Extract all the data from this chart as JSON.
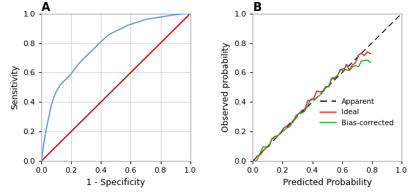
{
  "roc": {
    "title": "A",
    "xlabel": "1 - Specificity",
    "ylabel": "Sensitivity",
    "xlim": [
      0.0,
      1.0
    ],
    "ylim": [
      0.0,
      1.0
    ],
    "xticks": [
      0.0,
      0.2,
      0.4,
      0.6,
      0.8,
      1.0
    ],
    "yticks": [
      0.0,
      0.2,
      0.4,
      0.6,
      0.8,
      1.0
    ],
    "roc_color": "#5b9bd5",
    "diag_color": "#cc0000",
    "roc_curve_x": [
      0.0,
      0.005,
      0.01,
      0.02,
      0.03,
      0.05,
      0.07,
      0.1,
      0.13,
      0.16,
      0.19,
      0.22,
      0.26,
      0.3,
      0.35,
      0.4,
      0.46,
      0.52,
      0.58,
      0.64,
      0.7,
      0.76,
      0.82,
      0.88,
      0.93,
      0.97,
      1.0
    ],
    "roc_curve_y": [
      0.0,
      0.04,
      0.08,
      0.14,
      0.2,
      0.3,
      0.39,
      0.47,
      0.52,
      0.55,
      0.58,
      0.62,
      0.67,
      0.71,
      0.76,
      0.81,
      0.86,
      0.89,
      0.92,
      0.94,
      0.96,
      0.97,
      0.98,
      0.99,
      0.995,
      1.0,
      1.0
    ]
  },
  "cal": {
    "title": "B",
    "xlabel": "Predicted Probability",
    "ylabel": "Observed probability",
    "xlim": [
      0.0,
      1.0
    ],
    "ylim": [
      0.0,
      1.0
    ],
    "xticks": [
      0.0,
      0.2,
      0.4,
      0.6,
      0.8,
      1.0
    ],
    "yticks": [
      0.0,
      0.2,
      0.4,
      0.6,
      0.8,
      1.0
    ],
    "apparent_color": "#000000",
    "ideal_color": "#dd2222",
    "bias_corrected_color": "#22aa22",
    "legend_entries": [
      "Apparent",
      "Ideal",
      "Bias-corrected"
    ],
    "ideal_x": [
      0.0,
      0.01,
      0.02,
      0.03,
      0.05,
      0.07,
      0.09,
      0.11,
      0.13,
      0.15,
      0.17,
      0.19,
      0.21,
      0.23,
      0.25,
      0.27,
      0.29,
      0.31,
      0.33,
      0.35,
      0.37,
      0.39,
      0.41,
      0.43,
      0.45,
      0.47,
      0.49,
      0.51,
      0.53,
      0.55,
      0.57,
      0.59,
      0.61,
      0.63,
      0.65,
      0.67,
      0.69,
      0.71,
      0.73,
      0.75,
      0.77,
      0.79
    ],
    "ideal_y": [
      0.0,
      0.01,
      0.02,
      0.03,
      0.05,
      0.07,
      0.09,
      0.12,
      0.14,
      0.16,
      0.18,
      0.2,
      0.22,
      0.24,
      0.26,
      0.28,
      0.3,
      0.32,
      0.34,
      0.37,
      0.39,
      0.41,
      0.43,
      0.45,
      0.47,
      0.49,
      0.51,
      0.53,
      0.55,
      0.57,
      0.59,
      0.61,
      0.63,
      0.65,
      0.64,
      0.66,
      0.68,
      0.7,
      0.71,
      0.72,
      0.73,
      0.73
    ],
    "bias_x": [
      0.0,
      0.01,
      0.02,
      0.03,
      0.05,
      0.07,
      0.09,
      0.11,
      0.13,
      0.15,
      0.17,
      0.19,
      0.21,
      0.23,
      0.25,
      0.27,
      0.29,
      0.31,
      0.33,
      0.35,
      0.37,
      0.39,
      0.41,
      0.43,
      0.45,
      0.47,
      0.49,
      0.51,
      0.53,
      0.55,
      0.57,
      0.59,
      0.61,
      0.63,
      0.65,
      0.67,
      0.69,
      0.71,
      0.73,
      0.75,
      0.77,
      0.79
    ],
    "bias_y": [
      0.0,
      0.01,
      0.02,
      0.03,
      0.05,
      0.07,
      0.09,
      0.11,
      0.13,
      0.15,
      0.17,
      0.19,
      0.21,
      0.23,
      0.25,
      0.27,
      0.29,
      0.31,
      0.33,
      0.36,
      0.38,
      0.4,
      0.42,
      0.44,
      0.46,
      0.48,
      0.5,
      0.52,
      0.54,
      0.56,
      0.58,
      0.6,
      0.61,
      0.62,
      0.61,
      0.63,
      0.65,
      0.66,
      0.67,
      0.67,
      0.68,
      0.68
    ]
  },
  "bg_color": "#ffffff",
  "grid_color": "#cccccc",
  "tick_fontsize": 8,
  "label_fontsize": 9,
  "title_fontsize": 12
}
